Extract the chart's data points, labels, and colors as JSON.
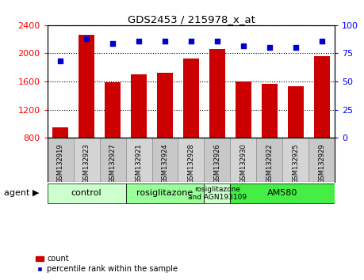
{
  "title": "GDS2453 / 215978_x_at",
  "samples": [
    "GSM132919",
    "GSM132923",
    "GSM132927",
    "GSM132921",
    "GSM132924",
    "GSM132928",
    "GSM132926",
    "GSM132930",
    "GSM132922",
    "GSM132925",
    "GSM132929"
  ],
  "counts": [
    950,
    2260,
    1590,
    1700,
    1720,
    1930,
    2060,
    1600,
    1570,
    1530,
    1960
  ],
  "percentiles": [
    68,
    88,
    84,
    86,
    86,
    86,
    86,
    82,
    80,
    80,
    86
  ],
  "ylim_left": [
    800,
    2400
  ],
  "ylim_right": [
    0,
    100
  ],
  "yticks_left": [
    800,
    1200,
    1600,
    2000,
    2400
  ],
  "yticks_right": [
    0,
    25,
    50,
    75,
    100
  ],
  "bar_color": "#cc0000",
  "dot_color": "#0000cc",
  "group_configs": [
    {
      "start": 0,
      "end": 2,
      "label": "control",
      "color": "#ccffcc"
    },
    {
      "start": 3,
      "end": 5,
      "label": "rosiglitazone",
      "color": "#99ff99"
    },
    {
      "start": 6,
      "end": 6,
      "label": "rosiglitazone\nand AGN193109",
      "color": "#ccffcc"
    },
    {
      "start": 7,
      "end": 10,
      "label": "AM580",
      "color": "#44ee44"
    }
  ],
  "agent_label": "agent",
  "legend_count_label": "count",
  "legend_percentile_label": "percentile rank within the sample",
  "xtick_bg_color": "#cccccc",
  "plot_bg_color": "#ffffff"
}
